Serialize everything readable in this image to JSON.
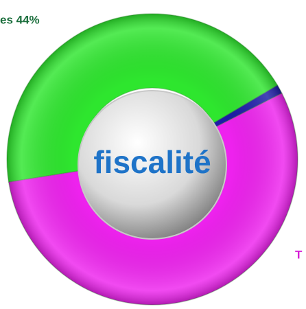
{
  "chart_data": {
    "type": "donut",
    "values": [
      44,
      1,
      55
    ],
    "value_labels": [
      "es 44%",
      null,
      "T"
    ],
    "colors": [
      "#2ee62e",
      "#1c1ca8",
      "#ee22ee"
    ],
    "label_colors": [
      "#1b6e3c",
      null,
      "#d61fd6"
    ],
    "annotations": [
      "fiscalité"
    ]
  }
}
